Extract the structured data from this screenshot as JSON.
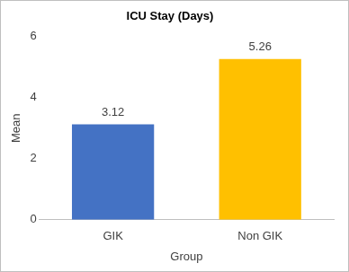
{
  "chart_data": {
    "type": "bar",
    "title": "ICU Stay (Days)",
    "x_label": "Group",
    "y_label": "Mean",
    "categories": [
      "GIK",
      "Non GIK"
    ],
    "values": [
      3.12,
      5.26
    ],
    "colors": [
      "#4472c4",
      "#ffc000"
    ],
    "ylim": [
      0,
      6
    ],
    "yticks": [
      0,
      2,
      4,
      6
    ],
    "grid": false,
    "data_labels": true
  }
}
